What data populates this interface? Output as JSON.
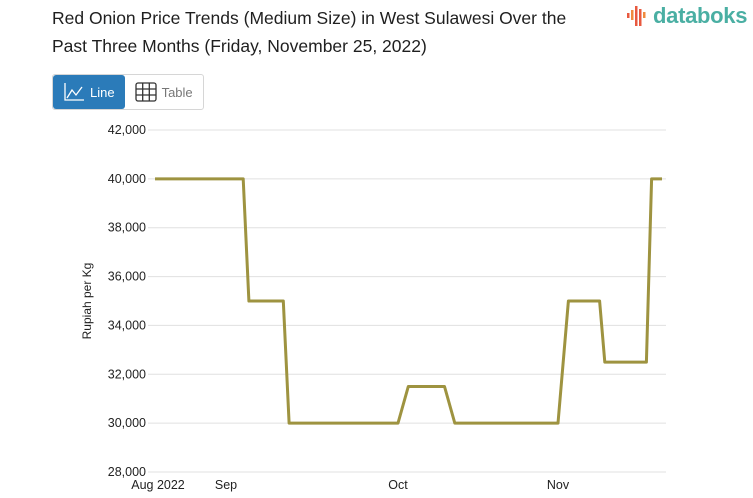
{
  "header": {
    "title": "Red Onion Price Trends (Medium Size) in West Sulawesi Over the Past Three Months (Friday, November 25, 2022)",
    "logo_text": "databoks"
  },
  "view_toggle": {
    "line_label": "Line",
    "table_label": "Table",
    "active": "Line"
  },
  "colors": {
    "line": "#9e9340",
    "accent": "#2b7bb9",
    "logo": "#4aafa3"
  },
  "chart_data": {
    "type": "line",
    "title": "Red Onion Price Trends (Medium Size) in West Sulawesi Over the Past Three Months (Friday, November 25, 2022)",
    "xlabel": "",
    "ylabel": "Rupiah per Kg",
    "ylim": [
      28000,
      42000
    ],
    "yticks": [
      "42,000",
      "40,000",
      "38,000",
      "36,000",
      "34,000",
      "32,000",
      "30,000",
      "28,000"
    ],
    "ytick_values": [
      42000,
      40000,
      38000,
      36000,
      34000,
      32000,
      30000,
      28000
    ],
    "xticks": [
      {
        "label": "Aug 2022",
        "date": "2022-08-20"
      },
      {
        "label": "Sep",
        "date": "2022-09-01"
      },
      {
        "label": "Oct",
        "date": "2022-10-01"
      },
      {
        "label": "Nov",
        "date": "2022-11-01"
      }
    ],
    "grid": true,
    "legend": "none",
    "series": [
      {
        "points": [
          {
            "x": "2022-08-20",
            "y": 40000
          },
          {
            "x": "2022-09-04",
            "y": 40000
          },
          {
            "x": "2022-09-05",
            "y": 35000
          },
          {
            "x": "2022-09-11",
            "y": 35000
          },
          {
            "x": "2022-09-12",
            "y": 30000
          },
          {
            "x": "2022-10-01",
            "y": 30000
          },
          {
            "x": "2022-10-03",
            "y": 31500
          },
          {
            "x": "2022-10-10",
            "y": 31500
          },
          {
            "x": "2022-10-12",
            "y": 30000
          },
          {
            "x": "2022-11-01",
            "y": 30000
          },
          {
            "x": "2022-11-03",
            "y": 35000
          },
          {
            "x": "2022-11-09",
            "y": 35000
          },
          {
            "x": "2022-11-10",
            "y": 32500
          },
          {
            "x": "2022-11-18",
            "y": 32500
          },
          {
            "x": "2022-11-19",
            "y": 40000
          },
          {
            "x": "2022-11-21",
            "y": 40000
          }
        ]
      }
    ]
  }
}
